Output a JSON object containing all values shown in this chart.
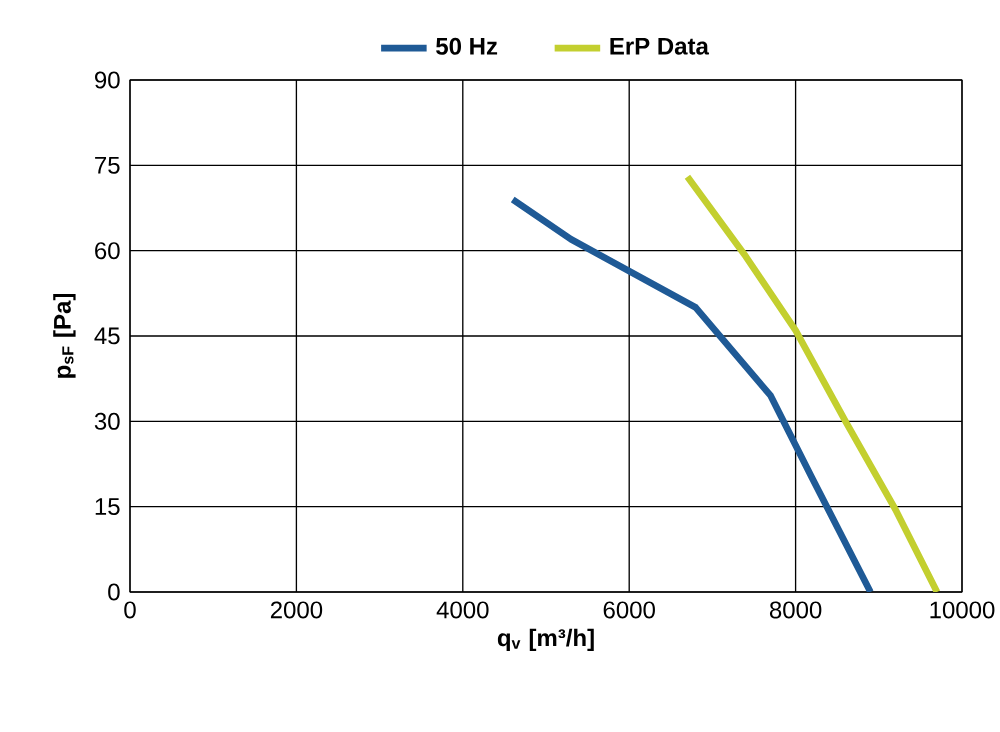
{
  "chart_data": {
    "type": "line",
    "xlabel": "q$_{v}$ [m³/h]",
    "ylabel": "p$_{sF}$ [Pa]",
    "xlim": [
      0,
      10000
    ],
    "ylim": [
      0,
      90
    ],
    "xticks": [
      0,
      2000,
      4000,
      6000,
      8000,
      10000
    ],
    "yticks": [
      0,
      15,
      30,
      45,
      60,
      75,
      90
    ],
    "grid": true,
    "legend": "top",
    "marker": "none",
    "line_style": "solid",
    "series": [
      {
        "name": "50 Hz",
        "color": "#1f5a96",
        "x": [
          4600,
          5300,
          6800,
          7700,
          8200,
          8900
        ],
        "values": [
          69,
          62,
          50,
          34.5,
          20,
          0
        ]
      },
      {
        "name": "ErP Data",
        "color": "#c3cf2f",
        "x": [
          6700,
          7400,
          8000,
          8600,
          9200,
          9700
        ],
        "values": [
          73,
          59,
          46,
          30,
          14.5,
          0
        ]
      }
    ]
  }
}
